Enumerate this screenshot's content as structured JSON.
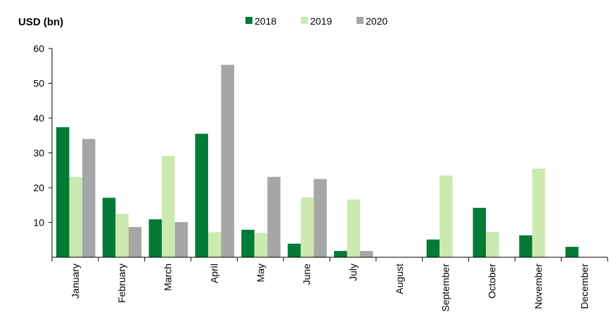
{
  "chart_data": {
    "type": "bar",
    "title": "",
    "ylabel": "USD (bn)",
    "xlabel": "",
    "ylim": [
      0,
      60
    ],
    "yticks": [
      10,
      20,
      30,
      40,
      50,
      60
    ],
    "grid": false,
    "legend_position": "top-center",
    "categories": [
      "January",
      "February",
      "March",
      "April",
      "May",
      "June",
      "July",
      "August",
      "September",
      "October",
      "November",
      "December"
    ],
    "series": [
      {
        "name": "2018",
        "color": "#037A35",
        "values": [
          37.4,
          17.1,
          10.9,
          35.5,
          7.9,
          3.9,
          1.8,
          0,
          5.1,
          14.2,
          6.3,
          3.0
        ]
      },
      {
        "name": "2019",
        "color": "#CCE9B0",
        "values": [
          23.1,
          12.5,
          29.1,
          7.2,
          7.0,
          17.2,
          16.6,
          0,
          23.5,
          7.3,
          25.5,
          0
        ]
      },
      {
        "name": "2020",
        "color": "#A6A6A6",
        "values": [
          34.0,
          8.7,
          10.1,
          55.3,
          23.1,
          22.5,
          1.8,
          0,
          0,
          0,
          0,
          0
        ]
      }
    ]
  }
}
